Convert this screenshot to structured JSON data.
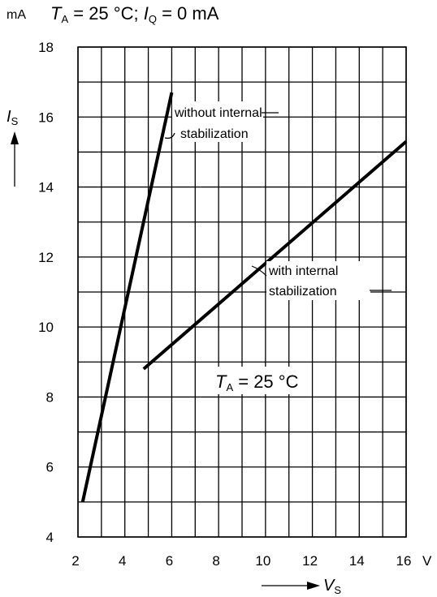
{
  "header": {
    "unit": "mA",
    "ta_symbol": "T",
    "ta_sub": "A",
    "ta_rest": " = 25 °C; ",
    "iq_symbol": "I",
    "iq_sub": "Q",
    "iq_rest": " = 0 mA"
  },
  "chart_data": {
    "type": "line",
    "title": "mA  TA = 25 °C; IQ = 0 mA",
    "xlabel": "VS",
    "ylabel": "IS",
    "x_unit": "V",
    "y_unit": "mA",
    "xlim": [
      2,
      16
    ],
    "ylim": [
      4,
      18
    ],
    "grid": true,
    "x_ticks": [
      2,
      4,
      6,
      8,
      10,
      12,
      14,
      16
    ],
    "y_ticks": [
      4,
      6,
      8,
      10,
      12,
      14,
      16,
      18
    ],
    "series": [
      {
        "name": "without internal stabilization",
        "x": [
          2.2,
          6.0
        ],
        "y": [
          5.0,
          16.7
        ]
      },
      {
        "name": "with internal stabilization",
        "x": [
          4.8,
          16.0
        ],
        "y": [
          8.8,
          15.3
        ]
      }
    ],
    "annotations": [
      {
        "text": "T",
        "sub": "A",
        "rest": " = 25 °C"
      }
    ]
  },
  "labels": {
    "without_line1": "without internal",
    "without_line2": "stabilization",
    "with_line1": "with internal",
    "with_line2": "stabilization",
    "x_unit_label": "V",
    "ylabel_main": "I",
    "ylabel_sub": "S",
    "xlabel_main": "V",
    "xlabel_sub": "S"
  }
}
